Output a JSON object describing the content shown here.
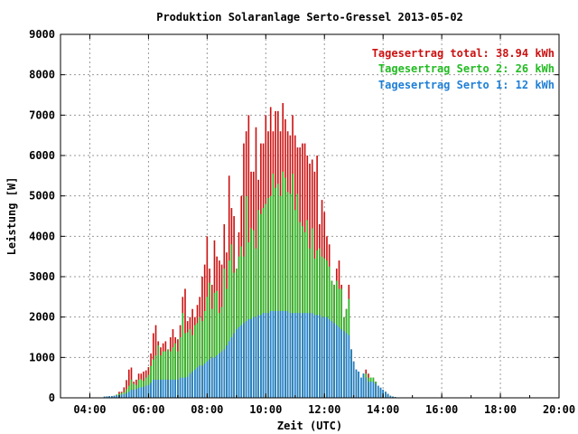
{
  "chart_data": {
    "type": "bar",
    "title": "Produktion Solaranlage Serto-Gressel 2013-05-02",
    "xlabel": "Zeit (UTC)",
    "ylabel": "Leistung [W]",
    "x_tick_labels": [
      "04:00",
      "06:00",
      "08:00",
      "10:00",
      "12:00",
      "14:00",
      "16:00",
      "18:00",
      "20:00"
    ],
    "y_tick_labels": [
      "0",
      "1000",
      "2000",
      "3000",
      "4000",
      "5000",
      "6000",
      "7000",
      "8000",
      "9000"
    ],
    "xlim_hours": [
      3,
      20
    ],
    "ylim": [
      0,
      9000
    ],
    "grid": true,
    "legend_position": "top-right",
    "bar_interval_minutes": 5,
    "stacked": true,
    "series": [
      {
        "name": "Tagesertrag Serto 1: 12 kWh",
        "color": "#1f7fd6"
      },
      {
        "name": "Tagesertrag Serto 2: 26 kWh",
        "color": "#22bb22"
      },
      {
        "name": "Tagesertrag total: 38.94 kWh",
        "color": "#cc1111"
      }
    ],
    "start_time": "04:30",
    "serto1_w": [
      30,
      35,
      40,
      45,
      50,
      60,
      70,
      80,
      90,
      120,
      150,
      200,
      200,
      220,
      250,
      260,
      270,
      300,
      320,
      370,
      450,
      450,
      450,
      450,
      450,
      450,
      450,
      450,
      450,
      450,
      450,
      500,
      500,
      500,
      520,
      600,
      650,
      700,
      750,
      800,
      800,
      850,
      900,
      950,
      1000,
      1000,
      1050,
      1100,
      1150,
      1200,
      1300,
      1400,
      1500,
      1600,
      1700,
      1750,
      1800,
      1850,
      1900,
      1950,
      1950,
      2000,
      2000,
      2050,
      2050,
      2100,
      2100,
      2100,
      2150,
      2150,
      2150,
      2150,
      2150,
      2150,
      2150,
      2150,
      2100,
      2100,
      2100,
      2100,
      2100,
      2100,
      2100,
      2100,
      2100,
      2100,
      2050,
      2050,
      2050,
      2000,
      2000,
      2000,
      1950,
      1900,
      1850,
      1800,
      1750,
      1700,
      1650,
      1600,
      1550,
      1500,
      1400,
      1300,
      1200,
      1000,
      700,
      500,
      400,
      400,
      400,
      350,
      300,
      250,
      200,
      150,
      100,
      80,
      60,
      40,
      30
    ],
    "serto2_w": [
      0,
      0,
      0,
      0,
      0,
      20,
      30,
      40,
      50,
      100,
      150,
      250,
      150,
      100,
      200,
      200,
      150,
      200,
      250,
      420,
      500,
      600,
      850,
      600,
      700,
      700,
      750,
      700,
      800,
      900,
      700,
      1000,
      1600,
      1100,
      1100,
      1100,
      900,
      1100,
      1100,
      1200,
      1100,
      1300,
      1600,
      1900,
      1200,
      1600,
      1600,
      1000,
      1100,
      2000,
      1400,
      2000,
      2300,
      1500,
      1650,
      1750,
      1950,
      1650,
      3100,
      1900,
      2250,
      2150,
      1700,
      2600,
      2500,
      2600,
      2700,
      2850,
      2850,
      3400,
      3050,
      3150,
      2850,
      3450,
      3300,
      2950,
      2950,
      3450,
      2550,
      2950,
      2250,
      2150,
      2000,
      2300,
      1600,
      2100,
      1400,
      1600,
      1650,
      1500,
      1450,
      1400,
      1300,
      1200,
      1200,
      1100,
      950,
      1000,
      1000,
      850,
      900,
      800,
      600,
      500,
      400,
      300,
      200,
      100,
      100,
      150,
      150,
      100,
      80,
      50,
      40,
      30,
      20,
      10,
      10,
      5,
      0
    ],
    "total_w": [
      30,
      35,
      40,
      45,
      50,
      80,
      150,
      150,
      260,
      440,
      700,
      750,
      400,
      450,
      600,
      600,
      650,
      680,
      760,
      1100,
      1600,
      1800,
      1400,
      1250,
      1350,
      1400,
      1200,
      1500,
      1700,
      1500,
      1450,
      1800,
      2500,
      2700,
      1900,
      2000,
      2200,
      2000,
      2300,
      2500,
      3000,
      3300,
      4000,
      3200,
      2800,
      3900,
      3500,
      3400,
      3300,
      4300,
      3600,
      5500,
      4700,
      4500,
      3200,
      4100,
      5000,
      6300,
      6600,
      7000,
      5600,
      5600,
      6700,
      5400,
      6300,
      6300,
      7000,
      6600,
      7200,
      6600,
      7100,
      7100,
      6600,
      7300,
      6900,
      6600,
      6500,
      7000,
      6500,
      6200,
      6200,
      6300,
      6300,
      6000,
      5800,
      5900,
      5600,
      6000,
      4300,
      4900,
      4600,
      4000,
      3800,
      2900,
      2800,
      3200,
      3400,
      2800,
      2000,
      2200,
      2800,
      1200,
      900,
      700,
      650,
      500,
      600,
      700,
      600,
      500,
      500,
      400,
      300,
      250,
      200,
      150,
      100,
      50,
      30,
      20
    ],
    "total_w_note": ""
  },
  "annotations": {
    "legend_total": "Tagesertrag total: 38.94 kWh",
    "legend_serto2": "Tagesertrag Serto 2: 26 kWh",
    "legend_serto1": "Tagesertrag Serto 1: 12 kWh"
  }
}
